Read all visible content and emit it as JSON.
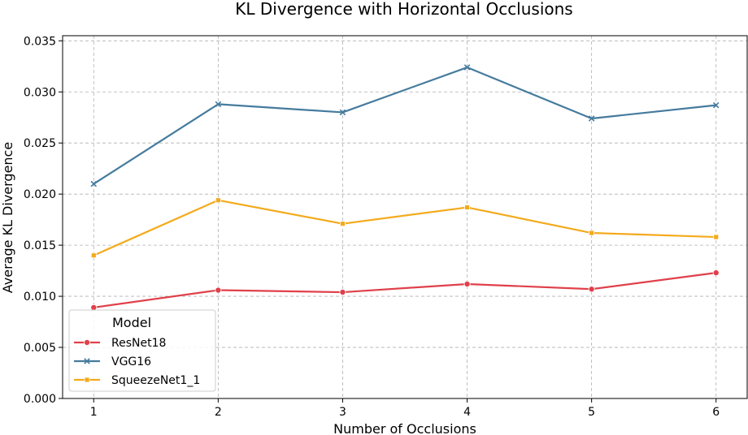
{
  "chart_data": {
    "type": "line",
    "title": "KL Divergence with Horizontal Occlusions",
    "xlabel": "Number of Occlusions",
    "ylabel": "Average KL Divergence",
    "x": [
      1,
      2,
      3,
      4,
      5,
      6
    ],
    "x_ticks": [
      "1",
      "2",
      "3",
      "4",
      "5",
      "6"
    ],
    "xlim": [
      0.75,
      6.25
    ],
    "ylim": [
      0,
      0.0355
    ],
    "y_ticks": [
      "0.000",
      "0.005",
      "0.010",
      "0.015",
      "0.020",
      "0.025",
      "0.030",
      "0.035"
    ],
    "grid": true,
    "legend": {
      "title": "Model",
      "placement": "lower-left"
    },
    "series": [
      {
        "name": "ResNet18",
        "color": "#e0404a",
        "marker": "circle",
        "values": [
          0.0089,
          0.0106,
          0.0104,
          0.0112,
          0.0107,
          0.0123
        ]
      },
      {
        "name": "VGG16",
        "color": "#457b9d",
        "marker": "x",
        "values": [
          0.021,
          0.0288,
          0.028,
          0.0324,
          0.0274,
          0.0287
        ]
      },
      {
        "name": "SqueezeNet1_1",
        "color": "#f4aa1c",
        "marker": "square",
        "values": [
          0.014,
          0.0194,
          0.0171,
          0.0187,
          0.0162,
          0.0158
        ]
      }
    ]
  }
}
